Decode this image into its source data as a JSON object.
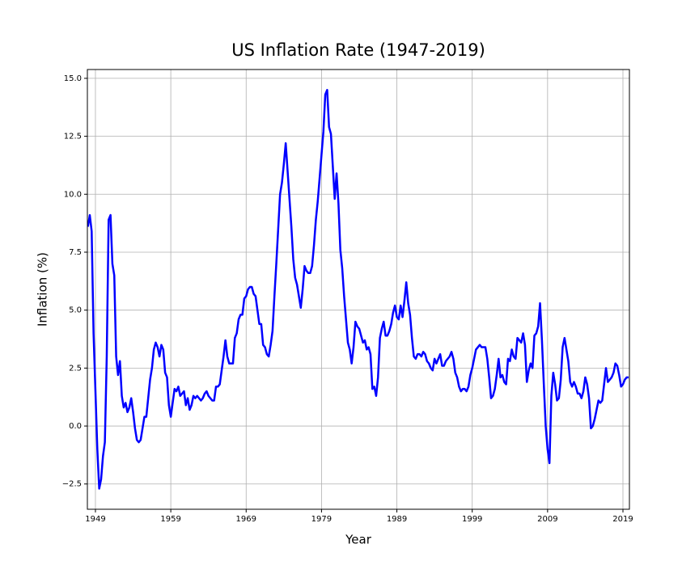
{
  "chart_data": {
    "type": "line",
    "title": "US Inflation Rate (1947-2019)",
    "x_label": "Year",
    "y_label": "Inflation (%)",
    "x": [
      1948,
      1948.25,
      1948.5,
      1948.75,
      1949,
      1949.25,
      1949.5,
      1949.75,
      1950,
      1950.25,
      1950.5,
      1950.75,
      1951,
      1951.25,
      1951.5,
      1951.75,
      1952,
      1952.25,
      1952.5,
      1952.75,
      1953,
      1953.25,
      1953.5,
      1953.75,
      1954,
      1954.25,
      1954.5,
      1954.75,
      1955,
      1955.25,
      1955.5,
      1955.75,
      1956,
      1956.25,
      1956.5,
      1956.75,
      1957,
      1957.25,
      1957.5,
      1957.75,
      1958,
      1958.25,
      1958.5,
      1958.75,
      1959,
      1959.25,
      1959.5,
      1959.75,
      1960,
      1960.25,
      1960.5,
      1960.75,
      1961,
      1961.25,
      1961.5,
      1961.75,
      1962,
      1962.25,
      1962.5,
      1962.75,
      1963,
      1963.25,
      1963.5,
      1963.75,
      1964,
      1964.25,
      1964.5,
      1964.75,
      1965,
      1965.25,
      1965.5,
      1965.75,
      1966,
      1966.25,
      1966.5,
      1966.75,
      1967,
      1967.25,
      1967.5,
      1967.75,
      1968,
      1968.25,
      1968.5,
      1968.75,
      1969,
      1969.25,
      1969.5,
      1969.75,
      1970,
      1970.25,
      1970.5,
      1970.75,
      1971,
      1971.25,
      1971.5,
      1971.75,
      1972,
      1972.25,
      1972.5,
      1972.75,
      1973,
      1973.25,
      1973.5,
      1973.75,
      1974,
      1974.25,
      1974.5,
      1974.75,
      1975,
      1975.25,
      1975.5,
      1975.75,
      1976,
      1976.25,
      1976.5,
      1976.75,
      1977,
      1977.25,
      1977.5,
      1977.75,
      1978,
      1978.25,
      1978.5,
      1978.75,
      1979,
      1979.25,
      1979.5,
      1979.75,
      1980,
      1980.25,
      1980.5,
      1980.75,
      1981,
      1981.25,
      1981.5,
      1981.75,
      1982,
      1982.25,
      1982.5,
      1982.75,
      1983,
      1983.25,
      1983.5,
      1983.75,
      1984,
      1984.25,
      1984.5,
      1984.75,
      1985,
      1985.25,
      1985.5,
      1985.75,
      1986,
      1986.25,
      1986.5,
      1986.75,
      1987,
      1987.25,
      1987.5,
      1987.75,
      1988,
      1988.25,
      1988.5,
      1988.75,
      1989,
      1989.25,
      1989.5,
      1989.75,
      1990,
      1990.25,
      1990.5,
      1990.75,
      1991,
      1991.25,
      1991.5,
      1991.75,
      1992,
      1992.25,
      1992.5,
      1992.75,
      1993,
      1993.25,
      1993.5,
      1993.75,
      1994,
      1994.25,
      1994.5,
      1994.75,
      1995,
      1995.25,
      1995.5,
      1995.75,
      1996,
      1996.25,
      1996.5,
      1996.75,
      1997,
      1997.25,
      1997.5,
      1997.75,
      1998,
      1998.25,
      1998.5,
      1998.75,
      1999,
      1999.25,
      1999.5,
      1999.75,
      2000,
      2000.25,
      2000.5,
      2000.75,
      2001,
      2001.25,
      2001.5,
      2001.75,
      2002,
      2002.25,
      2002.5,
      2002.75,
      2003,
      2003.25,
      2003.5,
      2003.75,
      2004,
      2004.25,
      2004.5,
      2004.75,
      2005,
      2005.25,
      2005.5,
      2005.75,
      2006,
      2006.25,
      2006.5,
      2006.75,
      2007,
      2007.25,
      2007.5,
      2007.75,
      2008,
      2008.25,
      2008.5,
      2008.75,
      2009,
      2009.25,
      2009.5,
      2009.75,
      2010,
      2010.25,
      2010.5,
      2010.75,
      2011,
      2011.25,
      2011.5,
      2011.75,
      2012,
      2012.25,
      2012.5,
      2012.75,
      2013,
      2013.25,
      2013.5,
      2013.75,
      2014,
      2014.25,
      2014.5,
      2014.75,
      2015,
      2015.25,
      2015.5,
      2015.75,
      2016,
      2016.25,
      2016.5,
      2016.75,
      2017,
      2017.25,
      2017.5,
      2017.75,
      2018,
      2018.25,
      2018.5,
      2018.75,
      2019,
      2019.25,
      2019.5,
      2019.75
    ],
    "series": [
      {
        "color": "#0000ff",
        "values": [
          8.6,
          9.1,
          8.4,
          4.0,
          1.5,
          -1.0,
          -2.7,
          -2.3,
          -1.3,
          -0.7,
          3.0,
          8.9,
          9.1,
          7.0,
          6.5,
          3.0,
          2.2,
          2.8,
          1.3,
          0.8,
          1.0,
          0.6,
          0.8,
          1.2,
          0.6,
          -0.1,
          -0.6,
          -0.7,
          -0.6,
          -0.1,
          0.4,
          0.4,
          1.2,
          2.0,
          2.5,
          3.3,
          3.6,
          3.4,
          3.0,
          3.5,
          3.3,
          2.3,
          2.1,
          0.9,
          0.4,
          1.0,
          1.6,
          1.5,
          1.7,
          1.3,
          1.4,
          1.5,
          0.9,
          1.2,
          0.7,
          0.9,
          1.3,
          1.2,
          1.3,
          1.2,
          1.1,
          1.2,
          1.4,
          1.5,
          1.3,
          1.2,
          1.1,
          1.1,
          1.7,
          1.7,
          1.8,
          2.4,
          3.0,
          3.7,
          3.0,
          2.7,
          2.7,
          2.7,
          3.8,
          4.0,
          4.6,
          4.8,
          4.8,
          5.5,
          5.6,
          5.9,
          6.0,
          6.0,
          5.7,
          5.6,
          5.0,
          4.4,
          4.4,
          3.5,
          3.4,
          3.1,
          3.0,
          3.5,
          4.1,
          5.6,
          7.0,
          8.5,
          10.0,
          10.5,
          11.3,
          12.2,
          11.0,
          9.8,
          8.6,
          7.2,
          6.4,
          6.1,
          5.6,
          5.1,
          5.9,
          6.9,
          6.7,
          6.6,
          6.6,
          6.9,
          7.8,
          8.9,
          9.7,
          10.7,
          11.7,
          12.7,
          14.3,
          14.5,
          12.9,
          12.6,
          11.2,
          9.8,
          10.9,
          9.6,
          7.6,
          6.8,
          5.6,
          4.6,
          3.6,
          3.3,
          2.7,
          3.4,
          4.5,
          4.3,
          4.2,
          3.9,
          3.6,
          3.7,
          3.3,
          3.4,
          3.1,
          1.6,
          1.7,
          1.3,
          2.1,
          3.8,
          4.2,
          4.5,
          3.9,
          3.9,
          4.1,
          4.4,
          4.9,
          5.2,
          4.7,
          4.6,
          5.2,
          4.7,
          5.4,
          6.2,
          5.3,
          4.8,
          3.8,
          3.0,
          2.9,
          3.1,
          3.1,
          3.0,
          3.2,
          3.1,
          2.8,
          2.7,
          2.5,
          2.4,
          2.9,
          2.7,
          2.9,
          3.1,
          2.6,
          2.6,
          2.8,
          2.9,
          3.0,
          3.2,
          2.9,
          2.3,
          2.1,
          1.7,
          1.5,
          1.6,
          1.6,
          1.5,
          1.7,
          2.2,
          2.5,
          2.9,
          3.3,
          3.4,
          3.5,
          3.4,
          3.4,
          3.4,
          2.9,
          2.1,
          1.2,
          1.3,
          1.6,
          2.2,
          2.9,
          2.1,
          2.2,
          1.9,
          1.8,
          2.9,
          2.8,
          3.3,
          3.0,
          2.9,
          3.8,
          3.7,
          3.6,
          4.0,
          3.5,
          1.9,
          2.4,
          2.7,
          2.5,
          3.9,
          4.0,
          4.3,
          5.3,
          3.7,
          1.8,
          0.0,
          -1.0,
          -1.6,
          1.3,
          2.3,
          1.8,
          1.1,
          1.2,
          2.0,
          3.4,
          3.8,
          3.3,
          2.8,
          1.9,
          1.7,
          1.9,
          1.7,
          1.4,
          1.4,
          1.2,
          1.5,
          2.1,
          1.8,
          1.2,
          -0.1,
          0.0,
          0.3,
          0.7,
          1.1,
          1.0,
          1.1,
          1.8,
          2.5,
          1.9,
          2.0,
          2.1,
          2.3,
          2.7,
          2.6,
          2.2,
          1.7,
          1.8,
          2.0,
          2.1,
          2.1
        ]
      }
    ],
    "xlim": [
      1947.93,
      2019.86
    ],
    "xticks": [
      1949,
      1959,
      1969,
      1979,
      1989,
      1999,
      2009,
      2019
    ],
    "ylim": [
      -3.59,
      15.38
    ],
    "yticks": [
      {
        "value": -2.5,
        "label": "−2.5"
      },
      {
        "value": 0,
        "label": "0.0"
      },
      2.5,
      {
        "value": 5,
        "label": "5.0"
      },
      7.5,
      {
        "value": 10,
        "label": "10.0"
      },
      12.5,
      {
        "value": 15,
        "label": "15.0"
      }
    ],
    "grid": true
  }
}
